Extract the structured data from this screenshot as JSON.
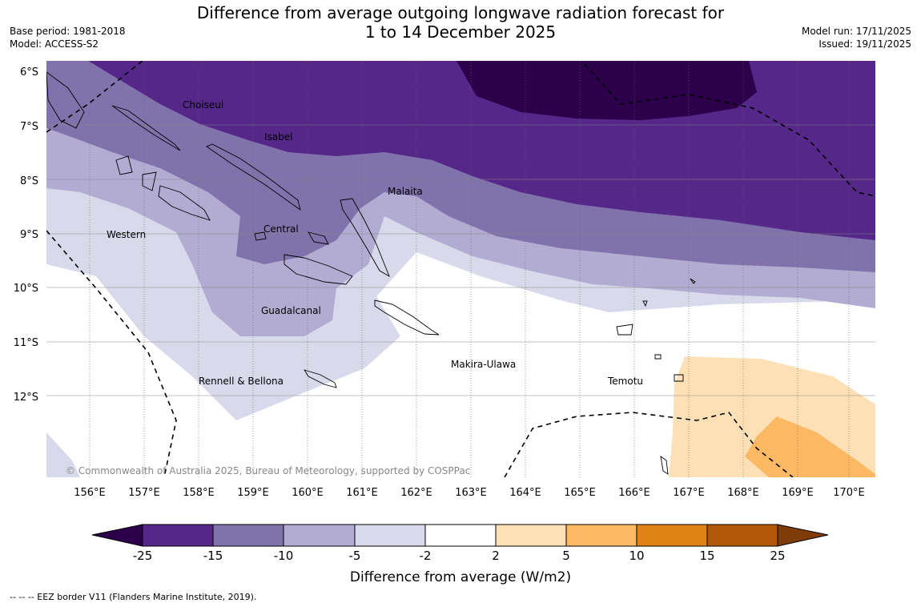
{
  "header": {
    "title_line1": "Difference from average outgoing longwave radiation forecast for",
    "title_line2": "1 to 14 December 2025",
    "base_period": "Base period: 1981-2018",
    "model": "Model: ACCESS-S2",
    "model_run": "Model run: 17/11/2025",
    "issued": "Issued: 19/11/2025"
  },
  "map": {
    "lat_labels": [
      "6°S",
      "7°S",
      "8°S",
      "9°S",
      "10°S",
      "11°S",
      "12°S"
    ],
    "lon_labels": [
      "156°E",
      "157°E",
      "158°E",
      "159°E",
      "160°E",
      "161°E",
      "162°E",
      "163°E",
      "164°E",
      "165°E",
      "166°E",
      "167°E",
      "168°E",
      "169°E",
      "170°E"
    ],
    "regions": [
      "Choiseul",
      "Isabel",
      "Malaita",
      "Central",
      "Western",
      "Guadalcanal",
      "Rennell & Bellona",
      "Makira-Ulawa",
      "Temotu"
    ],
    "copyright": "© Commonwealth of Australia 2025, Bureau of Meteorology, supported by COSPPac"
  },
  "colorbar": {
    "label": "Difference from average (W/m2)",
    "ticks": [
      "-25",
      "-15",
      "-10",
      "-5",
      "-2",
      "2",
      "5",
      "10",
      "15",
      "25"
    ],
    "colors": {
      "below": "#2d004b",
      "c1": "#542788",
      "c2": "#8073ac",
      "c3": "#b2abd2",
      "c4": "#d8daeb",
      "c5": "#ffffff",
      "c6": "#fee0b6",
      "c7": "#fdb863",
      "c8": "#e08214",
      "c9": "#b35806",
      "above": "#7f3b08"
    }
  },
  "footnote": "--  --  -- EEZ border V11 (Flanders Marine Institute, 2019)."
}
